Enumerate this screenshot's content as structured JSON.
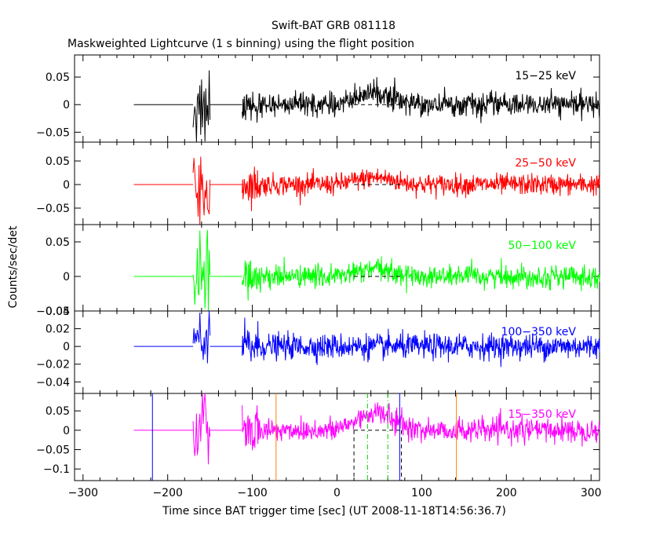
{
  "title": "Swift-BAT GRB 081118",
  "subtitle": "Maskweighted Lightcurve (1 s binning) using the flight position",
  "chart_data": {
    "type": "line",
    "xlabel": "Time since BAT trigger time [sec] (UT 2008-11-18T14:56:36.7)",
    "ylabel": "Counts/sec/det",
    "xlim": [
      -310,
      310
    ],
    "x_ticks": [
      -300,
      -200,
      -100,
      0,
      100,
      200,
      300
    ],
    "x_tick_labels": [
      "−300",
      "−200",
      "−100",
      "0",
      "100",
      "200",
      "300"
    ],
    "panels": [
      {
        "name": "15-25 keV",
        "label": "15−25 keV",
        "color": "#000000",
        "ylim": [
          -0.068,
          0.09
        ],
        "y_ticks": [
          -0.05,
          0,
          0.05
        ],
        "y_tick_labels": [
          "−0.05",
          "0",
          "0.05"
        ],
        "noise": 0.01,
        "burst_amp": 0.05,
        "peak": 0.02,
        "show_zero_dashed": true
      },
      {
        "name": "25-50 keV",
        "label": "25−50 keV",
        "color": "#ff0000",
        "ylim": [
          -0.085,
          0.09
        ],
        "y_ticks": [
          -0.05,
          0,
          0.05
        ],
        "y_tick_labels": [
          "−0.05",
          "0",
          "0.05"
        ],
        "noise": 0.011,
        "burst_amp": 0.06,
        "peak": 0.015,
        "show_zero_dashed": true
      },
      {
        "name": "50-100 keV",
        "label": "50−100 keV",
        "color": "#00ff00",
        "ylim": [
          -0.05,
          0.075
        ],
        "y_ticks": [
          -0.05,
          0,
          0.05
        ],
        "y_tick_labels": [
          "−0.05",
          "0",
          "0.05"
        ],
        "noise": 0.008,
        "burst_amp": 0.045,
        "peak": 0.01,
        "show_zero_dashed": true
      },
      {
        "name": "100-350 keV",
        "label": "100−350 keV",
        "color": "#0000ff",
        "ylim": [
          -0.053,
          0.04
        ],
        "y_ticks": [
          -0.04,
          -0.02,
          0,
          0.02,
          0.04
        ],
        "y_tick_labels": [
          "−0.04",
          "−0.02",
          "0",
          "0.02",
          "0.04"
        ],
        "noise": 0.007,
        "burst_amp": 0.03,
        "peak": 0.0,
        "show_zero_dashed": false
      },
      {
        "name": "15-350 keV",
        "label": "15−350 keV",
        "color": "#ff00ff",
        "ylim": [
          -0.13,
          0.095
        ],
        "y_ticks": [
          -0.1,
          -0.05,
          0,
          0.05
        ],
        "y_tick_labels": [
          "−0.1",
          "−0.05",
          "0",
          "0.05"
        ],
        "noise": 0.015,
        "burst_amp": 0.08,
        "peak": 0.045,
        "show_zero_dashed": true,
        "markers": [
          {
            "kind": "blue-vertical",
            "x": -218,
            "color": "#0000ff"
          },
          {
            "kind": "blue-vertical",
            "x": 74,
            "color": "#0000ff"
          },
          {
            "kind": "orange-vertical",
            "x": -72,
            "color": "#ff8000"
          },
          {
            "kind": "orange-vertical",
            "x": 141,
            "color": "#ff8000"
          },
          {
            "kind": "green-dashdot",
            "x": 36,
            "color": "#00cc00"
          },
          {
            "kind": "green-dashdot",
            "x": 60,
            "color": "#00cc00"
          }
        ],
        "t90_box": {
          "x_start": 20,
          "x_end": 76,
          "y": 0.0,
          "color": "#000000"
        }
      }
    ]
  }
}
